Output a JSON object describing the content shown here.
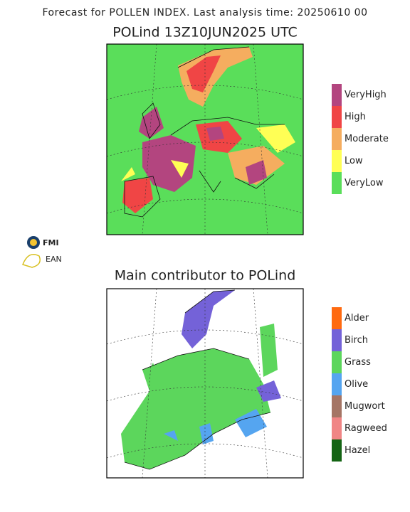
{
  "header": {
    "title": "Forecast for POLLEN INDEX. Last analysis time: 20250610 00"
  },
  "maps": [
    {
      "title": "POLind 13Z10JUN2025 UTC",
      "legend": [
        {
          "name": "VeryHigh",
          "color": "#b3457f"
        },
        {
          "name": "High",
          "color": "#f04545"
        },
        {
          "name": "Moderate",
          "color": "#f5ad5f"
        },
        {
          "name": "Low",
          "color": "#ffff55"
        },
        {
          "name": "VeryLow",
          "color": "#5ade5a"
        }
      ]
    },
    {
      "title": "Main contributor to POLind",
      "legend": [
        {
          "name": "Alder",
          "color": "#ff6a10"
        },
        {
          "name": "Birch",
          "color": "#7462d8"
        },
        {
          "name": "Grass",
          "color": "#5cd65c"
        },
        {
          "name": "Olive",
          "color": "#55a5f0"
        },
        {
          "name": "Mugwort",
          "color": "#a57565"
        },
        {
          "name": "Ragweed",
          "color": "#f08585"
        },
        {
          "name": "Hazel",
          "color": "#146414"
        }
      ]
    }
  ],
  "logos": {
    "fmi": "FMI",
    "ean": "EAN"
  }
}
